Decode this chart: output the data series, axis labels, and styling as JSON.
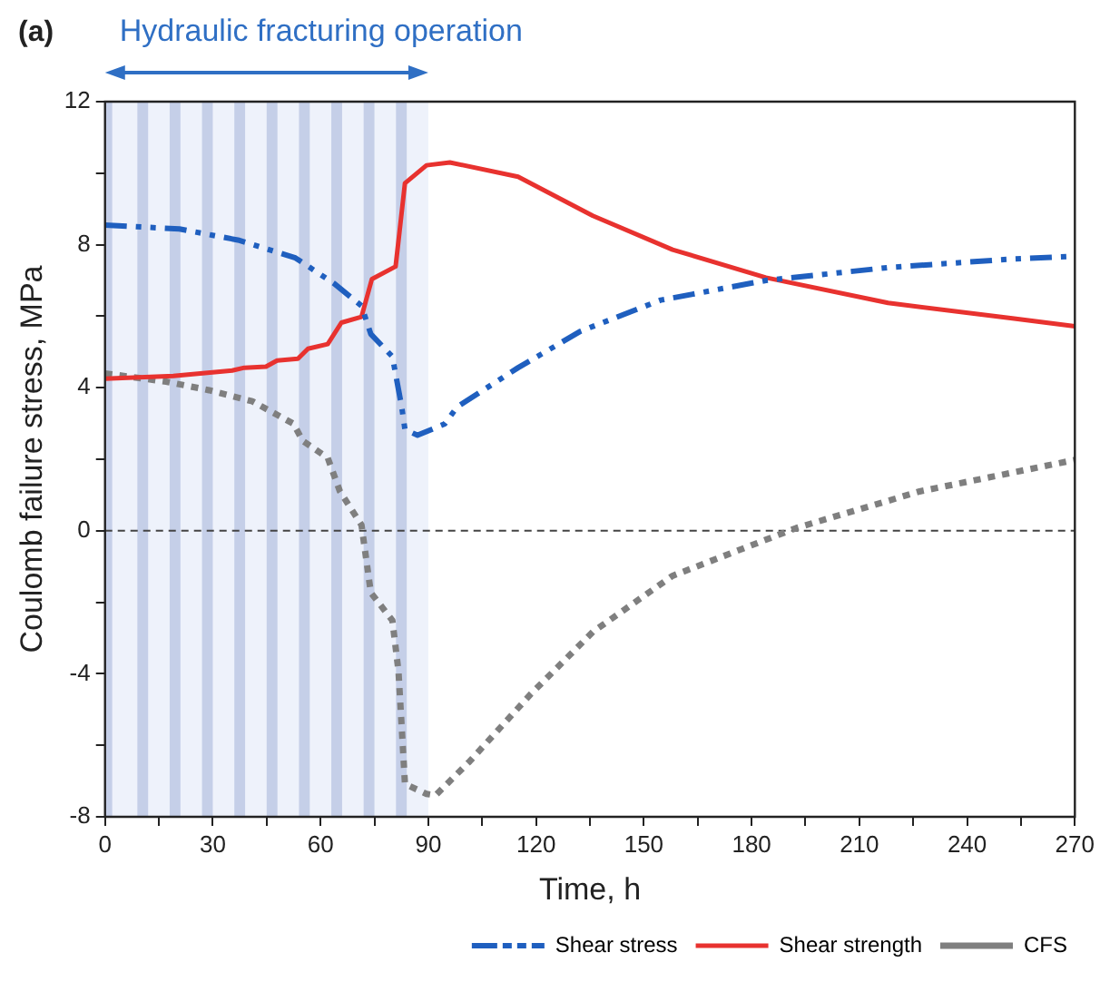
{
  "chart_data": {
    "type": "line",
    "title": "(a)",
    "xlabel": "Time, h",
    "ylabel": "Coulomb failure stress, MPa",
    "xlim": [
      0,
      270
    ],
    "xticks": [
      0,
      {
        "value": 15,
        "label": null
      },
      30,
      {
        "value": 45,
        "label": null
      },
      60,
      {
        "value": 75,
        "label": null
      },
      90,
      {
        "value": 105,
        "label": null
      },
      120,
      {
        "value": 135,
        "label": null
      },
      150,
      {
        "value": 165,
        "label": null
      },
      180,
      {
        "value": 195,
        "label": null
      },
      210,
      {
        "value": 225,
        "label": null
      },
      240,
      {
        "value": 255,
        "label": null
      },
      270
    ],
    "ylim": [
      -8,
      12
    ],
    "yticks": [
      -8,
      {
        "value": -6,
        "label": null
      },
      -4,
      {
        "value": -2,
        "label": null
      },
      0,
      {
        "value": 2,
        "label": null
      },
      4,
      {
        "value": 6,
        "label": null
      },
      8,
      {
        "value": 10,
        "label": null
      },
      12
    ],
    "grid": false,
    "legend": "bottom right",
    "marker": "none",
    "ref_lines": [
      {
        "axis": "y",
        "value": 0,
        "color": "#444444",
        "line_style": "dashed"
      }
    ],
    "bands": [
      {
        "axis": "x",
        "from": 0,
        "to": 90,
        "label": "Hydraulic fracturing operation",
        "color": "#eef2fb"
      },
      {
        "axis": "x",
        "from": 0,
        "to": 2,
        "color": "#c5cfe8"
      },
      {
        "axis": "x",
        "from": 9,
        "to": 12,
        "color": "#c5cfe8"
      },
      {
        "axis": "x",
        "from": 18,
        "to": 21,
        "color": "#c5cfe8"
      },
      {
        "axis": "x",
        "from": 27,
        "to": 30,
        "color": "#c5cfe8"
      },
      {
        "axis": "x",
        "from": 36,
        "to": 39,
        "color": "#c5cfe8"
      },
      {
        "axis": "x",
        "from": 45,
        "to": 48,
        "color": "#c5cfe8"
      },
      {
        "axis": "x",
        "from": 54,
        "to": 57,
        "color": "#c5cfe8"
      },
      {
        "axis": "x",
        "from": 63,
        "to": 66,
        "color": "#c5cfe8"
      },
      {
        "axis": "x",
        "from": 72,
        "to": 75,
        "color": "#c5cfe8"
      },
      {
        "axis": "x",
        "from": 81,
        "to": 84,
        "color": "#c5cfe8"
      }
    ],
    "series": [
      {
        "name": "Shear stress",
        "color": "#1f5fbf",
        "line_style": "dashed",
        "x": [
          0,
          20.7,
          37,
          53,
          63.7,
          71.4,
          74,
          80,
          82.6,
          83.5,
          87,
          94.6,
          98,
          115,
          132.4,
          154.7,
          184,
          218,
          252.6,
          269
        ],
        "values": [
          8.55,
          8.44,
          8.13,
          7.63,
          6.92,
          6.29,
          5.5,
          4.87,
          3.46,
          2.83,
          2.67,
          2.99,
          3.46,
          4.56,
          5.58,
          6.45,
          7.0,
          7.36,
          7.6,
          7.67
        ]
      },
      {
        "name": "Shear strength",
        "color": "#e8322f",
        "line_style": "solid",
        "x": [
          0,
          19,
          35.4,
          38.8,
          44.8,
          47.9,
          53.7,
          56.5,
          62,
          65.8,
          71.4,
          74.3,
          80.9,
          83.5,
          89.5,
          96,
          115,
          135.8,
          158,
          184,
          218,
          252.6,
          270
        ],
        "values": [
          4.25,
          4.33,
          4.48,
          4.56,
          4.59,
          4.76,
          4.81,
          5.09,
          5.22,
          5.82,
          5.98,
          7.04,
          7.39,
          9.72,
          10.22,
          10.3,
          9.9,
          8.81,
          7.86,
          7.08,
          6.37,
          5.94,
          5.72
        ]
      },
      {
        "name": "CFS",
        "color": "#7f7f7f",
        "line_style": "dotted",
        "x": [
          0,
          17,
          29,
          41,
          52.5,
          55,
          62,
          65.4,
          71.4,
          74,
          80,
          81.7,
          83.5,
          89.5,
          92,
          101.5,
          118.6,
          135.8,
          158,
          192.5,
          226.8,
          270
        ],
        "values": [
          4.4,
          4.17,
          3.93,
          3.62,
          2.99,
          2.52,
          2.04,
          1.1,
          0.16,
          -1.73,
          -2.51,
          -3.93,
          -7.08,
          -7.36,
          -7.4,
          -6.45,
          -4.56,
          -2.83,
          -1.26,
          0.08,
          1.1,
          1.98
        ]
      }
    ]
  }
}
